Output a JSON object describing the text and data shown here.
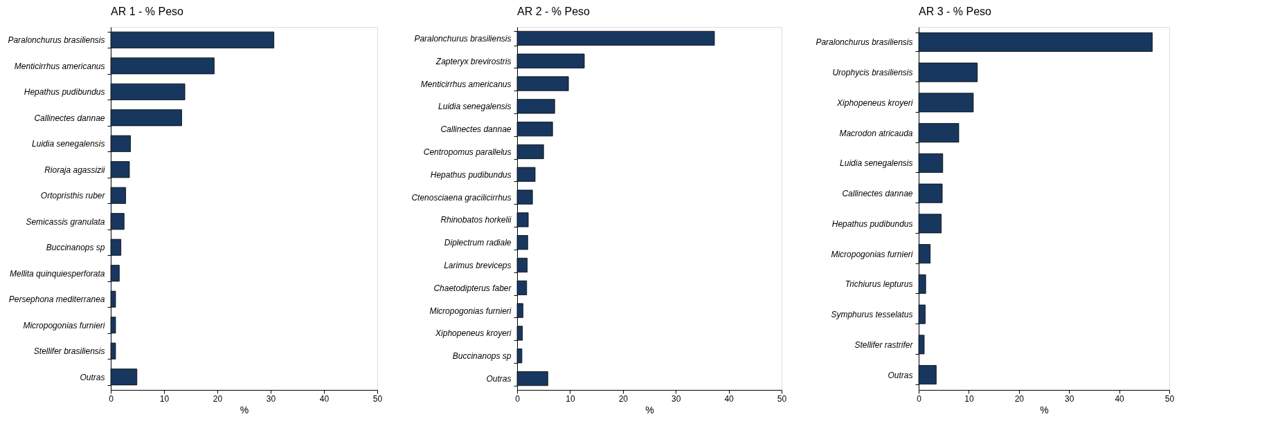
{
  "chart_data": [
    {
      "type": "bar",
      "orientation": "horizontal",
      "title": "AR 1 - % Peso",
      "xlabel": "%",
      "color": "#17375e",
      "xlim": [
        0,
        50
      ],
      "xticks": [
        0,
        10,
        20,
        30,
        40,
        50
      ],
      "categories": [
        "Paralonchurus brasiliensis",
        "Menticirrhus americanus",
        "Hepathus pudibundus",
        "Callinectes dannae",
        "Luidia senegalensis",
        "Rioraja agassizii",
        "Ortopristhis ruber",
        "Semicassis granulata",
        "Buccinanops sp",
        "Mellita quinquiesperforata",
        "Persephona mediterranea",
        "Micropogonias furnieri",
        "Stellifer brasiliensis",
        "Outras"
      ],
      "values": [
        30.6,
        19.4,
        13.9,
        13.3,
        3.7,
        3.5,
        2.8,
        2.5,
        1.9,
        1.6,
        0.9,
        0.9,
        0.9,
        4.9
      ]
    },
    {
      "type": "bar",
      "orientation": "horizontal",
      "title": "AR 2 - % Peso",
      "xlabel": "%",
      "color": "#17375e",
      "xlim": [
        0,
        50
      ],
      "xticks": [
        0,
        10,
        20,
        30,
        40,
        50
      ],
      "categories": [
        "Paralonchurus brasiliensis",
        "Zapteryx brevirostris",
        "Menticirrhus americanus",
        "Luidia senegalensis",
        "Callinectes dannae",
        "Centropomus parallelus",
        "Hepathus pudibundus",
        "Ctenosciaena gracilicirrhus",
        "Rhinobatos horkelii",
        "Diplectrum radiale",
        "Larimus breviceps",
        "Chaetodipterus faber",
        "Micropogonias furnieri",
        "Xiphopeneus kroyeri",
        "Buccinanops sp",
        "Outras"
      ],
      "values": [
        37.3,
        12.7,
        9.7,
        7.1,
        6.7,
        5.0,
        3.4,
        2.9,
        2.1,
        2.0,
        1.9,
        1.8,
        1.1,
        1.0,
        0.9,
        5.8
      ]
    },
    {
      "type": "bar",
      "orientation": "horizontal",
      "title": "AR 3 - % Peso",
      "xlabel": "%",
      "color": "#17375e",
      "xlim": [
        0,
        50
      ],
      "xticks": [
        0,
        10,
        20,
        30,
        40,
        50
      ],
      "categories": [
        "Paralonchurus brasiliensis",
        "Urophycis brasiliensis",
        "Xiphopeneus kroyeri",
        "Macrodon atricauda",
        "Luidia senegalensis",
        "Callinectes dannae",
        "Hepathus pudibundus",
        "Micropogonias furnieri",
        "Trichiurus lepturus",
        "Symphurus tesselatus",
        "Stellifer rastrifer",
        "Outras"
      ],
      "values": [
        46.6,
        11.7,
        10.9,
        8.0,
        4.8,
        4.7,
        4.5,
        2.3,
        1.4,
        1.3,
        1.1,
        3.5
      ]
    }
  ]
}
